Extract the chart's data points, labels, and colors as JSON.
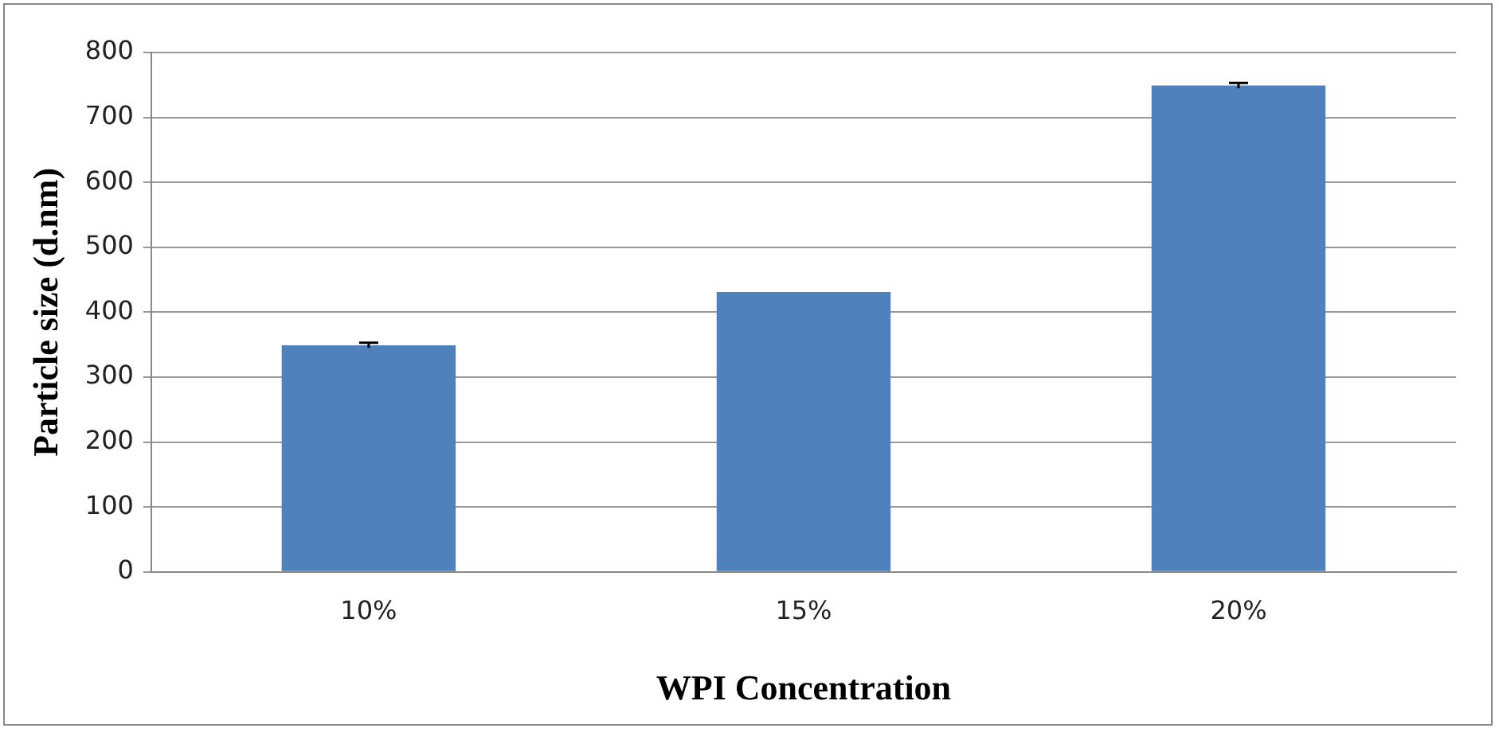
{
  "chart_data": {
    "type": "bar",
    "xlabel": "WPI Concentration",
    "ylabel": "Particle size (d.nm)",
    "categories": [
      "10%",
      "15%",
      "20%"
    ],
    "values": [
      349,
      431,
      749
    ],
    "errors": [
      4,
      null,
      4
    ],
    "color": "#4f81bd",
    "ylim": [
      0,
      800
    ],
    "yticks": [
      0,
      100,
      200,
      300,
      400,
      500,
      600,
      700,
      800
    ],
    "grid": "y",
    "legend": false
  }
}
